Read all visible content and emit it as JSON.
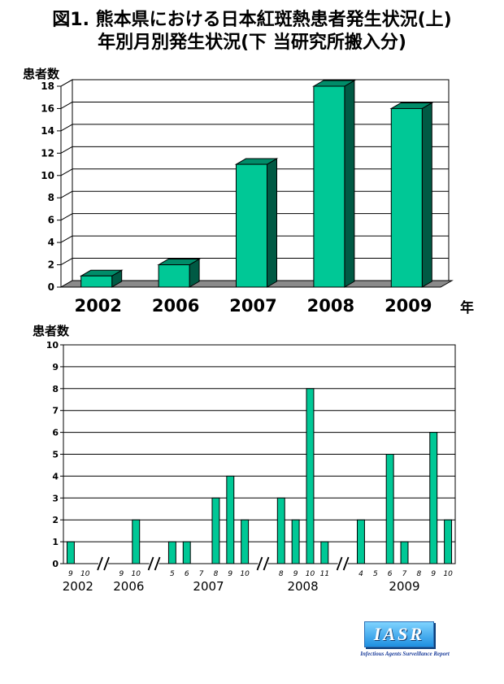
{
  "header": {
    "title_line1": "図1. 熊本県における日本紅斑熱患者発生状況(上)",
    "title_line2": "年別月別発生状況(下 当研究所搬入分)"
  },
  "logo": {
    "text": "IASR",
    "subtitle": "Infectious Agents Surveillance Report"
  },
  "chart_data": [
    {
      "type": "bar",
      "ylabel": "患者数",
      "xlabel": "年",
      "categories": [
        "2002",
        "2006",
        "2007",
        "2008",
        "2009"
      ],
      "values": [
        1,
        2,
        11,
        18,
        16
      ],
      "yticks": [
        0,
        2,
        4,
        6,
        8,
        10,
        12,
        14,
        16,
        18
      ],
      "ylim": [
        0,
        18
      ],
      "grid": true,
      "style": "3d",
      "bar_color": "#00c896"
    },
    {
      "type": "bar",
      "ylabel": "患者数",
      "categories": [
        "9",
        "10",
        "9",
        "10",
        "5",
        "6",
        "7",
        "8",
        "9",
        "10",
        "8",
        "9",
        "10",
        "11",
        "4",
        "5",
        "6",
        "7",
        "8",
        "9",
        "10"
      ],
      "values": [
        1,
        0,
        0,
        2,
        1,
        1,
        0,
        3,
        4,
        2,
        3,
        2,
        8,
        1,
        2,
        0,
        5,
        1,
        0,
        6,
        2
      ],
      "groups": [
        {
          "label": "2002",
          "categories": [
            "9",
            "10"
          ]
        },
        {
          "label": "2006",
          "categories": [
            "9",
            "10"
          ]
        },
        {
          "label": "2007",
          "categories": [
            "5",
            "6",
            "7",
            "8",
            "9",
            "10"
          ]
        },
        {
          "label": "2008",
          "categories": [
            "8",
            "9",
            "10",
            "11"
          ]
        },
        {
          "label": "2009",
          "categories": [
            "4",
            "5",
            "6",
            "7",
            "8",
            "9",
            "10"
          ]
        }
      ],
      "axis_breaks_after": [
        "2002",
        "2006",
        "2007",
        "2008"
      ],
      "yticks": [
        0,
        1,
        2,
        3,
        4,
        5,
        6,
        7,
        8,
        9,
        10
      ],
      "ylim": [
        0,
        10
      ],
      "grid": true,
      "bar_color": "#00c896"
    }
  ]
}
